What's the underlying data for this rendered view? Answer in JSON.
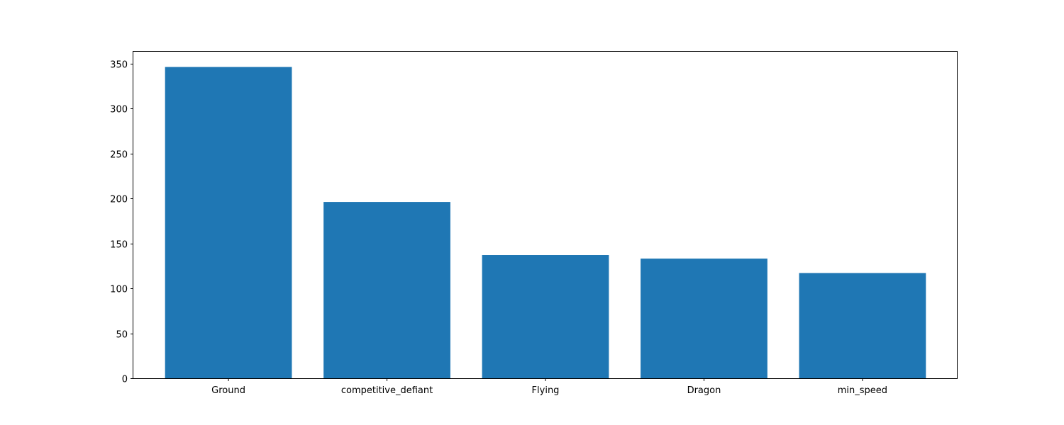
{
  "chart_data": {
    "type": "bar",
    "categories": [
      "Ground",
      "competitive_defiant",
      "Flying",
      "Dragon",
      "min_speed"
    ],
    "values": [
      346,
      196,
      137,
      133,
      117
    ],
    "yticks": [
      "0",
      "50",
      "100",
      "150",
      "200",
      "250",
      "300",
      "350"
    ],
    "ylim": [
      0,
      363
    ],
    "color": "#1f77b4",
    "grid": false,
    "title": "",
    "xlabel": "",
    "ylabel": ""
  }
}
